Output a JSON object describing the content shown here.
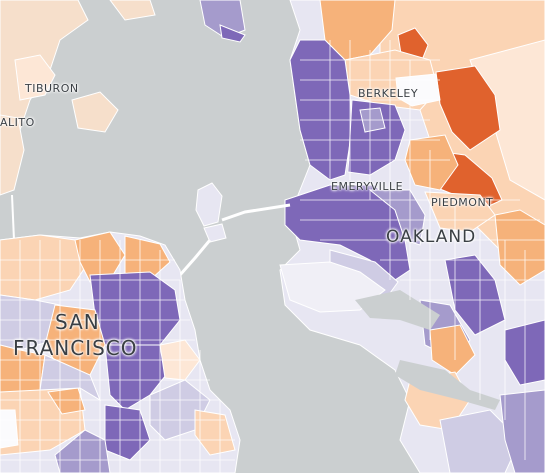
{
  "map": {
    "colors": {
      "water": "#cbcfd0",
      "land": "#f6dfcb",
      "deep_orange": "#e0622d",
      "orange": "#f6b27a",
      "light_orange": "#fbd4b4",
      "very_light_orange": "#fde7d6",
      "deep_purple": "#7e68b8",
      "purple": "#a59bcc",
      "light_purple": "#cfcce4",
      "very_light_purple": "#e7e6f2",
      "white": "#fbfbfd",
      "road": "#ffffff",
      "border": "#ffffff"
    },
    "labels": {
      "tiburon": "TIBURON",
      "sausalito": "ALITO",
      "berkeley": "BERKELEY",
      "emeryville": "EMERYVILLE",
      "piedmont": "PIEDMONT",
      "oakland": "OAKLAND",
      "san": "SAN",
      "francisco": "FRANCISCO"
    }
  }
}
